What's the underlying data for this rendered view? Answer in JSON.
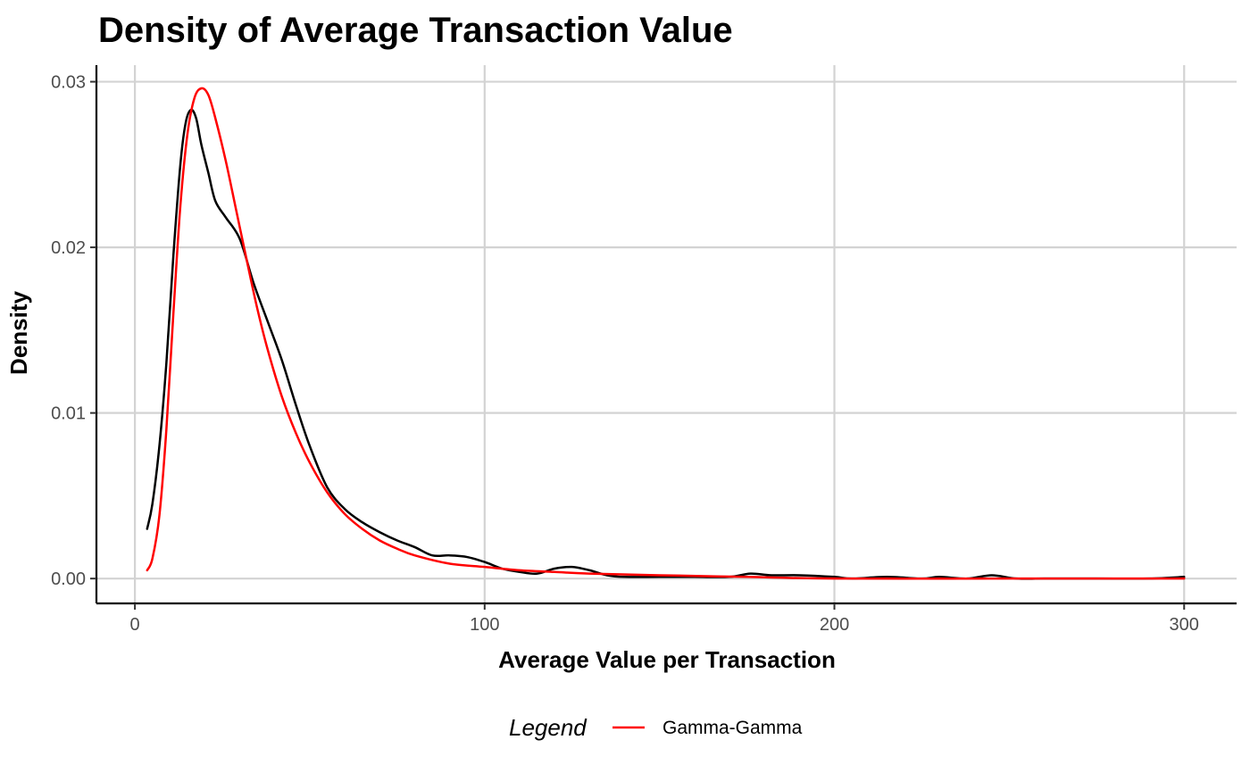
{
  "chart_data": {
    "type": "line",
    "title": "Density of Average Transaction Value",
    "xlabel": "Average Value per Transaction",
    "ylabel": "Density",
    "xlim": [
      -11,
      315
    ],
    "ylim": [
      -0.0015,
      0.031
    ],
    "x_ticks": [
      0,
      100,
      200,
      300
    ],
    "x_tick_labels": [
      "0",
      "100",
      "200",
      "300"
    ],
    "y_ticks": [
      0.0,
      0.01,
      0.02,
      0.03
    ],
    "y_tick_labels": [
      "0.00",
      "0.01",
      "0.02",
      "0.03"
    ],
    "grid": true,
    "legend": {
      "title": "Legend",
      "position": "bottom",
      "entries": [
        {
          "label": "Gamma-Gamma",
          "color": "#ff0000"
        }
      ]
    },
    "series": [
      {
        "color": "#000000",
        "points": [
          [
            3.5,
            0.003
          ],
          [
            5,
            0.0045
          ],
          [
            7,
            0.008
          ],
          [
            9,
            0.013
          ],
          [
            11,
            0.0195
          ],
          [
            13,
            0.025
          ],
          [
            14.5,
            0.0275
          ],
          [
            16,
            0.0283
          ],
          [
            17.5,
            0.0278
          ],
          [
            19,
            0.0262
          ],
          [
            21,
            0.0245
          ],
          [
            23,
            0.0228
          ],
          [
            26,
            0.0218
          ],
          [
            30,
            0.0205
          ],
          [
            34,
            0.0178
          ],
          [
            38,
            0.0155
          ],
          [
            42,
            0.0132
          ],
          [
            46,
            0.0105
          ],
          [
            50,
            0.008
          ],
          [
            55,
            0.0055
          ],
          [
            60,
            0.0042
          ],
          [
            65,
            0.0034
          ],
          [
            70,
            0.0028
          ],
          [
            75,
            0.0023
          ],
          [
            80,
            0.0019
          ],
          [
            85,
            0.0014
          ],
          [
            90,
            0.0014
          ],
          [
            95,
            0.0013
          ],
          [
            100,
            0.001
          ],
          [
            105,
            0.0006
          ],
          [
            110,
            0.0004
          ],
          [
            115,
            0.0003
          ],
          [
            120,
            0.0006
          ],
          [
            125,
            0.0007
          ],
          [
            130,
            0.0005
          ],
          [
            135,
            0.0002
          ],
          [
            140,
            0.0001
          ],
          [
            150,
            0.0001
          ],
          [
            160,
            0.0001
          ],
          [
            170,
            0.0001
          ],
          [
            176,
            0.0003
          ],
          [
            182,
            0.0002
          ],
          [
            190,
            0.0002
          ],
          [
            200,
            0.0001
          ],
          [
            205,
            0.0
          ],
          [
            215,
            0.0001
          ],
          [
            225,
            0.0
          ],
          [
            230,
            0.0001
          ],
          [
            238,
            0.0
          ],
          [
            245,
            0.0002
          ],
          [
            252,
            0.0
          ],
          [
            260,
            0.0
          ],
          [
            275,
            0.0
          ],
          [
            290,
            0.0
          ],
          [
            300,
            0.0001
          ]
        ]
      },
      {
        "name": "Gamma-Gamma",
        "color": "#ff0000",
        "points": [
          [
            3.5,
            0.0005
          ],
          [
            5,
            0.0012
          ],
          [
            7,
            0.0038
          ],
          [
            9,
            0.009
          ],
          [
            11,
            0.016
          ],
          [
            13,
            0.0225
          ],
          [
            15,
            0.0268
          ],
          [
            17,
            0.029
          ],
          [
            19,
            0.0296
          ],
          [
            21,
            0.0292
          ],
          [
            23,
            0.0278
          ],
          [
            26,
            0.0252
          ],
          [
            29,
            0.0222
          ],
          [
            32,
            0.0192
          ],
          [
            35,
            0.0163
          ],
          [
            38,
            0.0138
          ],
          [
            42,
            0.011
          ],
          [
            46,
            0.0088
          ],
          [
            50,
            0.007
          ],
          [
            55,
            0.0052
          ],
          [
            60,
            0.0039
          ],
          [
            65,
            0.003
          ],
          [
            70,
            0.0023
          ],
          [
            75,
            0.0018
          ],
          [
            80,
            0.0014
          ],
          [
            90,
            0.0009
          ],
          [
            100,
            0.0007
          ],
          [
            110,
            0.0005
          ],
          [
            120,
            0.0004
          ],
          [
            130,
            0.0003
          ],
          [
            150,
            0.0002
          ],
          [
            175,
            0.0001
          ],
          [
            200,
            0.0
          ],
          [
            250,
            0.0
          ],
          [
            300,
            0.0
          ]
        ]
      }
    ]
  }
}
